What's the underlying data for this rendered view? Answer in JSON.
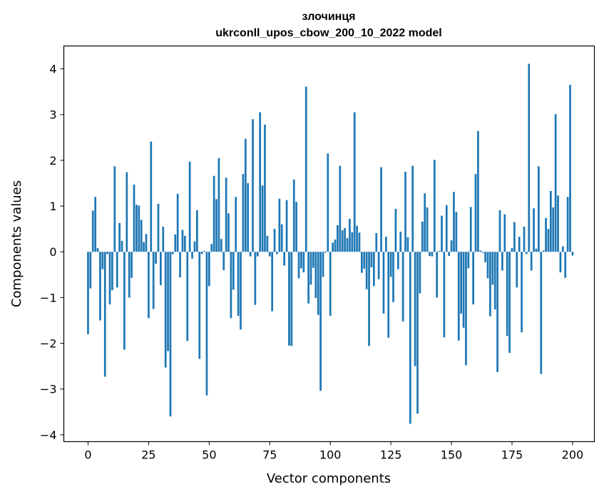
{
  "chart_data": {
    "type": "bar",
    "title_line1": "злочинця",
    "title_line2": "ukrconll_upos_cbow_200_10_2022 model",
    "xlabel": "Vector components",
    "ylabel": "Components values",
    "xlim": [
      -10,
      209
    ],
    "ylim": [
      -4.15,
      4.5
    ],
    "x_ticks": [
      0,
      25,
      50,
      75,
      100,
      125,
      150,
      175,
      200
    ],
    "y_ticks": [
      -4,
      -3,
      -2,
      -1,
      0,
      1,
      2,
      3,
      4
    ],
    "x_tick_labels": [
      "0",
      "25",
      "50",
      "75",
      "100",
      "125",
      "150",
      "175",
      "200"
    ],
    "y_tick_labels": [
      "−4",
      "−3",
      "−2",
      "−1",
      "0",
      "1",
      "2",
      "3",
      "4"
    ],
    "bar_color": "#1f77b4",
    "grid": false,
    "values": [
      -1.8,
      -0.8,
      0.9,
      1.2,
      0.08,
      -1.5,
      -0.38,
      -2.73,
      -0.05,
      -1.15,
      -0.84,
      1.87,
      -0.78,
      0.63,
      0.24,
      -2.14,
      1.74,
      -1.0,
      -0.57,
      1.47,
      1.03,
      1.01,
      0.7,
      0.21,
      0.39,
      -1.45,
      2.41,
      -1.25,
      -0.26,
      1.05,
      -0.73,
      0.55,
      -2.53,
      -2.17,
      -3.6,
      -0.05,
      0.38,
      1.27,
      -0.56,
      0.48,
      0.35,
      -1.95,
      1.97,
      -0.15,
      0.23,
      0.91,
      -2.34,
      -0.05,
      0.02,
      -3.14,
      -0.75,
      0.17,
      1.66,
      1.15,
      2.05,
      0.28,
      -0.4,
      1.62,
      0.84,
      -1.45,
      -0.83,
      1.2,
      -1.4,
      -1.7,
      1.7,
      2.47,
      1.5,
      -0.1,
      2.9,
      -1.16,
      -0.1,
      3.05,
      1.45,
      2.78,
      0.35,
      -0.1,
      -1.3,
      0.5,
      -0.05,
      1.16,
      0.6,
      -0.3,
      1.13,
      -2.05,
      -2.06,
      1.58,
      1.09,
      -0.58,
      -0.36,
      -0.45,
      3.61,
      -1.13,
      -0.72,
      -0.35,
      -1.01,
      -1.38,
      -3.04,
      -0.55,
      -0.02,
      2.15,
      -1.4,
      0.2,
      0.27,
      0.58,
      1.88,
      0.47,
      0.52,
      0.3,
      0.72,
      0.43,
      3.05,
      0.57,
      0.42,
      -0.46,
      -0.37,
      -0.82,
      -2.06,
      -0.34,
      -0.75,
      0.41,
      -0.6,
      1.85,
      -1.35,
      0.33,
      -1.88,
      -0.55,
      -1.1,
      0.94,
      -0.38,
      0.44,
      -1.52,
      1.75,
      0.32,
      -3.76,
      1.88,
      -2.5,
      -3.54,
      -0.91,
      0.66,
      1.28,
      0.97,
      -0.09,
      -0.1,
      2.01,
      -1.0,
      0.02,
      0.79,
      -1.87,
      1.02,
      -0.09,
      0.25,
      1.31,
      0.87,
      -1.94,
      -1.35,
      -1.66,
      -2.48,
      -0.36,
      0.98,
      -1.15,
      1.7,
      2.64,
      0.03,
      -0.02,
      -0.23,
      -0.58,
      -1.41,
      -0.72,
      -1.26,
      -2.63,
      0.91,
      -0.41,
      0.82,
      -1.84,
      -2.21,
      0.08,
      0.65,
      -0.78,
      0.33,
      -1.76,
      0.55,
      -0.05,
      4.11,
      -0.41,
      0.95,
      0.07,
      1.87,
      -2.67,
      0.03,
      0.74,
      0.5,
      1.33,
      0.97,
      3.01,
      1.23,
      -0.45,
      0.12,
      -0.57,
      1.2,
      3.65,
      -0.08
    ]
  }
}
